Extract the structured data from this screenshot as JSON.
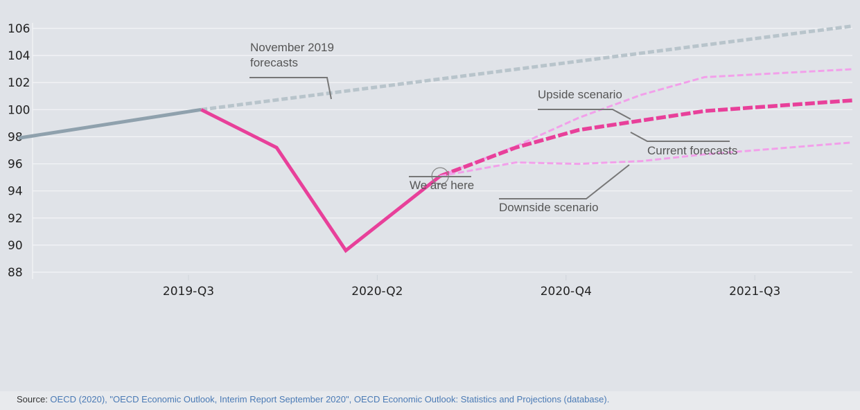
{
  "chart_data": {
    "type": "line",
    "ylim": [
      88,
      106
    ],
    "yticks": [
      106,
      104,
      102,
      100,
      98,
      96,
      94,
      92,
      90,
      88
    ],
    "ytick_labels": [
      "106",
      "104",
      "102",
      "100",
      "98",
      "96",
      "94",
      "92",
      "90",
      "88"
    ],
    "xlim": [
      0,
      8.5
    ],
    "xticks": [
      {
        "x": 1,
        "label": "2019-Q3"
      },
      {
        "x": 4,
        "label": "2020-Q2"
      },
      {
        "x": 7,
        "label": "2020-Q4"
      },
      {
        "x": 10,
        "label": "2021-Q3"
      }
    ],
    "grid": true,
    "series": [
      {
        "key": "pre_crisis",
        "style": "solid",
        "color": "#8fa1ad",
        "points": [
          [
            -1.7,
            97.9
          ],
          [
            1.2,
            100.0
          ]
        ]
      },
      {
        "key": "nov2019",
        "style": "dashed",
        "color": "#b8c4cb",
        "points": [
          [
            1.2,
            100.0
          ],
          [
            11.6,
            106.2
          ]
        ]
      },
      {
        "key": "current_actual",
        "style": "solid",
        "color": "#e8409a",
        "points": [
          [
            1.2,
            100.0
          ],
          [
            2.4,
            97.2
          ],
          [
            3.5,
            89.6
          ],
          [
            5.0,
            95.1
          ]
        ]
      },
      {
        "key": "upside",
        "style": "dashed",
        "color": "#f2a0ea",
        "points": [
          [
            5.0,
            95.1
          ],
          [
            6.2,
            97.3
          ],
          [
            7.2,
            99.4
          ],
          [
            8.2,
            101.1
          ],
          [
            9.2,
            102.4
          ],
          [
            11.6,
            103.0
          ]
        ]
      },
      {
        "key": "current_forecast",
        "style": "dashed-bold",
        "color": "#e8409a",
        "points": [
          [
            5.0,
            95.1
          ],
          [
            6.2,
            97.2
          ],
          [
            7.2,
            98.5
          ],
          [
            8.2,
            99.2
          ],
          [
            9.2,
            99.9
          ],
          [
            11.6,
            100.7
          ]
        ]
      },
      {
        "key": "downside",
        "style": "dashed",
        "color": "#f2a0ea",
        "points": [
          [
            5.0,
            95.1
          ],
          [
            6.2,
            96.1
          ],
          [
            7.2,
            96.0
          ],
          [
            8.2,
            96.2
          ],
          [
            9.2,
            96.7
          ],
          [
            11.6,
            97.6
          ]
        ]
      }
    ],
    "annotations": [
      {
        "key": "nov",
        "lines": [
          "November 2019",
          "forecasts"
        ]
      },
      {
        "key": "upside",
        "lines": [
          "Upside scenario"
        ]
      },
      {
        "key": "current",
        "lines": [
          "Current forecasts"
        ]
      },
      {
        "key": "here",
        "lines": [
          "We are here"
        ]
      },
      {
        "key": "downside",
        "lines": [
          "Downside scenario"
        ]
      }
    ]
  },
  "source": {
    "prefix": "Source: ",
    "text": "OECD (2020), \"OECD Economic Outlook, Interim Report September 2020\", OECD Economic Outlook: Statistics and Projections (database)."
  },
  "colors": {
    "background": "#e0e3e8",
    "grid": "#f4f5f7",
    "pre_crisis": "#8fa1ad",
    "nov2019": "#b8c4cb",
    "current": "#e8409a",
    "scenario": "#f2a0ea",
    "leader": "#777777"
  }
}
